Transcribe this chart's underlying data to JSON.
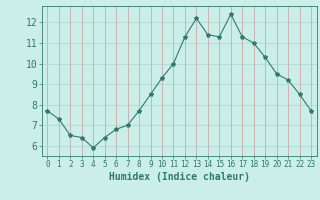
{
  "x": [
    0,
    1,
    2,
    3,
    4,
    5,
    6,
    7,
    8,
    9,
    10,
    11,
    12,
    13,
    14,
    15,
    16,
    17,
    18,
    19,
    20,
    21,
    22,
    23
  ],
  "y": [
    7.7,
    7.3,
    6.5,
    6.4,
    5.9,
    6.4,
    6.8,
    7.0,
    7.7,
    8.5,
    9.3,
    10.0,
    11.3,
    12.2,
    11.4,
    11.3,
    12.4,
    11.3,
    11.0,
    10.3,
    9.5,
    9.2,
    8.5,
    7.7
  ],
  "line_color": "#2d7b6e",
  "marker": "*",
  "marker_size": 3,
  "bg_color": "#cceee8",
  "grid_color": "#aad4ce",
  "xlabel": "Humidex (Indice chaleur)",
  "xlim": [
    -0.5,
    23.5
  ],
  "ylim": [
    5.5,
    12.8
  ],
  "yticks": [
    6,
    7,
    8,
    9,
    10,
    11,
    12
  ],
  "xticks": [
    0,
    1,
    2,
    3,
    4,
    5,
    6,
    7,
    8,
    9,
    10,
    11,
    12,
    13,
    14,
    15,
    16,
    17,
    18,
    19,
    20,
    21,
    22,
    23
  ],
  "tick_color": "#2d7b6e",
  "label_color": "#2d7b6e",
  "spine_color": "#2d7b6e",
  "xlabel_fontsize": 7,
  "tick_fontsize_x": 5.5,
  "tick_fontsize_y": 7
}
